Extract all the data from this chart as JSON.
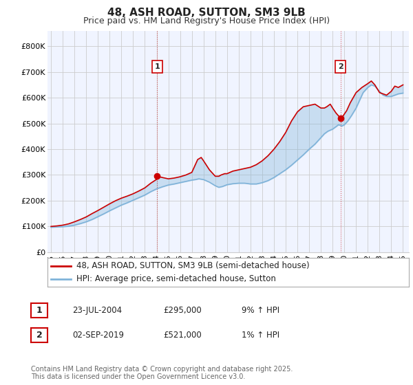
{
  "title": "48, ASH ROAD, SUTTON, SM3 9LB",
  "subtitle": "Price paid vs. HM Land Registry's House Price Index (HPI)",
  "ylabel_ticks": [
    "£0",
    "£100K",
    "£200K",
    "£300K",
    "£400K",
    "£500K",
    "£600K",
    "£700K",
    "£800K"
  ],
  "ytick_values": [
    0,
    100000,
    200000,
    300000,
    400000,
    500000,
    600000,
    700000,
    800000
  ],
  "ylim": [
    0,
    860000
  ],
  "xlim_start": 1994.7,
  "xlim_end": 2025.5,
  "xticks": [
    1995,
    1996,
    1997,
    1998,
    1999,
    2000,
    2001,
    2002,
    2003,
    2004,
    2005,
    2006,
    2007,
    2008,
    2009,
    2010,
    2011,
    2012,
    2013,
    2014,
    2015,
    2016,
    2017,
    2018,
    2019,
    2020,
    2021,
    2022,
    2023,
    2024,
    2025
  ],
  "legend_line1": "48, ASH ROAD, SUTTON, SM3 9LB (semi-detached house)",
  "legend_line2": "HPI: Average price, semi-detached house, Sutton",
  "line1_color": "#cc0000",
  "line2_color": "#7fb3d9",
  "fill_color": "#ddeeff",
  "sale1_x": 2004.05,
  "sale1_y": 295000,
  "sale1_label": "1",
  "sale2_x": 2019.67,
  "sale2_y": 521000,
  "sale2_label": "2",
  "bg_color": "#ffffff",
  "chart_bg": "#f0f4ff",
  "grid_color": "#cccccc",
  "title_fontsize": 11,
  "subtitle_fontsize": 9,
  "tick_fontsize": 8,
  "legend_fontsize": 8.5,
  "annotation_fontsize": 8.5,
  "footnote_fontsize": 7,
  "hpi_x": [
    1995.0,
    1995.5,
    1996.0,
    1996.5,
    1997.0,
    1997.5,
    1998.0,
    1998.5,
    1999.0,
    1999.5,
    2000.0,
    2000.5,
    2001.0,
    2001.5,
    2002.0,
    2002.5,
    2003.0,
    2003.5,
    2004.0,
    2004.5,
    2005.0,
    2005.5,
    2006.0,
    2006.5,
    2007.0,
    2007.3,
    2007.6,
    2008.0,
    2008.5,
    2009.0,
    2009.3,
    2009.6,
    2010.0,
    2010.5,
    2011.0,
    2011.5,
    2012.0,
    2012.5,
    2013.0,
    2013.5,
    2014.0,
    2014.5,
    2015.0,
    2015.5,
    2016.0,
    2016.5,
    2017.0,
    2017.5,
    2018.0,
    2018.3,
    2018.6,
    2019.0,
    2019.3,
    2019.5,
    2019.8,
    2020.0,
    2020.3,
    2020.6,
    2021.0,
    2021.3,
    2021.6,
    2022.0,
    2022.3,
    2022.6,
    2023.0,
    2023.3,
    2023.6,
    2024.0,
    2024.3,
    2024.6,
    2025.0
  ],
  "hpi_y": [
    97000,
    98000,
    99000,
    101000,
    105000,
    111000,
    118000,
    127000,
    138000,
    149000,
    161000,
    172000,
    183000,
    192000,
    202000,
    212000,
    222000,
    235000,
    246000,
    254000,
    261000,
    265000,
    270000,
    275000,
    280000,
    282000,
    285000,
    282000,
    272000,
    258000,
    252000,
    255000,
    262000,
    266000,
    268000,
    268000,
    265000,
    265000,
    270000,
    278000,
    290000,
    305000,
    320000,
    338000,
    358000,
    378000,
    400000,
    420000,
    445000,
    460000,
    470000,
    478000,
    488000,
    495000,
    490000,
    495000,
    510000,
    530000,
    560000,
    590000,
    620000,
    640000,
    650000,
    645000,
    625000,
    610000,
    605000,
    605000,
    610000,
    615000,
    618000
  ],
  "red_x": [
    1995.0,
    1995.5,
    1996.0,
    1996.5,
    1997.0,
    1997.5,
    1998.0,
    1998.5,
    1999.0,
    1999.5,
    2000.0,
    2000.5,
    2001.0,
    2001.5,
    2002.0,
    2002.5,
    2003.0,
    2003.5,
    2004.0,
    2004.05,
    2004.5,
    2005.0,
    2005.5,
    2006.0,
    2006.5,
    2007.0,
    2007.5,
    2007.8,
    2008.0,
    2008.5,
    2009.0,
    2009.3,
    2009.5,
    2009.8,
    2010.0,
    2010.5,
    2011.0,
    2011.5,
    2012.0,
    2012.5,
    2013.0,
    2013.5,
    2014.0,
    2014.5,
    2015.0,
    2015.5,
    2016.0,
    2016.5,
    2017.0,
    2017.5,
    2018.0,
    2018.3,
    2018.5,
    2018.8,
    2019.0,
    2019.3,
    2019.67,
    2019.9,
    2020.2,
    2020.5,
    2021.0,
    2021.5,
    2022.0,
    2022.3,
    2022.6,
    2023.0,
    2023.3,
    2023.6,
    2024.0,
    2024.3,
    2024.6,
    2025.0
  ],
  "red_y": [
    100000,
    102000,
    105000,
    110000,
    118000,
    127000,
    137000,
    150000,
    162000,
    175000,
    188000,
    200000,
    210000,
    218000,
    227000,
    238000,
    250000,
    268000,
    283000,
    295000,
    290000,
    285000,
    288000,
    293000,
    300000,
    310000,
    360000,
    368000,
    355000,
    320000,
    295000,
    295000,
    300000,
    305000,
    305000,
    315000,
    320000,
    325000,
    330000,
    340000,
    355000,
    375000,
    400000,
    430000,
    465000,
    510000,
    545000,
    565000,
    570000,
    575000,
    560000,
    560000,
    565000,
    575000,
    560000,
    540000,
    521000,
    530000,
    550000,
    580000,
    620000,
    640000,
    655000,
    665000,
    650000,
    620000,
    615000,
    610000,
    625000,
    645000,
    640000,
    650000
  ]
}
